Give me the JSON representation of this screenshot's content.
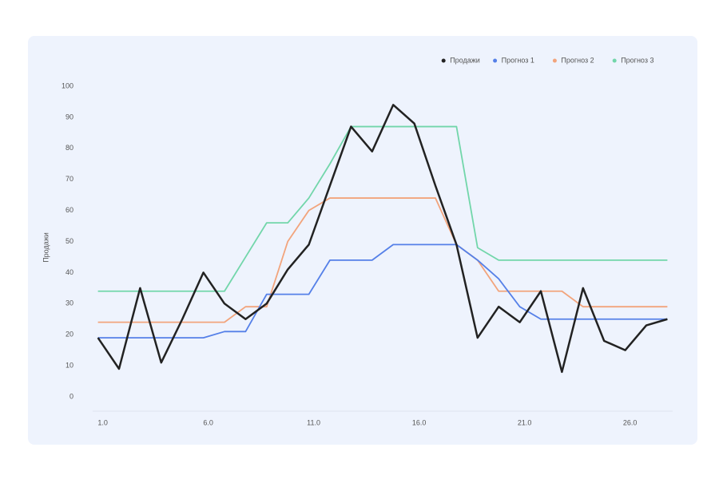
{
  "chart_data": {
    "type": "line",
    "y_label": "Продажи",
    "x": [
      1,
      2,
      3,
      4,
      5,
      6,
      7,
      8,
      9,
      10,
      11,
      12,
      13,
      14,
      15,
      16,
      17,
      18,
      19,
      20,
      21,
      22,
      23,
      24,
      25,
      26,
      27,
      28
    ],
    "series": [
      {
        "name": "Продажи",
        "color": "#222222",
        "values": [
          19,
          9,
          35,
          11,
          25,
          40,
          30,
          25,
          30,
          41,
          49,
          68,
          87,
          79,
          94,
          88,
          68,
          49,
          19,
          29,
          24,
          34,
          8,
          35,
          18,
          15,
          23,
          25
        ]
      },
      {
        "name": "Прогноз 1",
        "color": "#5580e8",
        "values": [
          19,
          19,
          19,
          19,
          19,
          19,
          21,
          21,
          33,
          33,
          33,
          44,
          44,
          44,
          49,
          49,
          49,
          49,
          44,
          38,
          29,
          25,
          25,
          25,
          25,
          25,
          25,
          25
        ]
      },
      {
        "name": "Прогноз 2",
        "color": "#f2a47c",
        "values": [
          24,
          24,
          24,
          24,
          24,
          24,
          24,
          29,
          29,
          50,
          60,
          64,
          64,
          64,
          64,
          64,
          64,
          49,
          44,
          34,
          34,
          34,
          34,
          29,
          29,
          29,
          29,
          29
        ]
      },
      {
        "name": "Прогноз 3",
        "color": "#72d6aa",
        "values": [
          34,
          34,
          34,
          34,
          34,
          34,
          34,
          45,
          56,
          56,
          64,
          75,
          87,
          87,
          87,
          87,
          87,
          87,
          48,
          44,
          44,
          44,
          44,
          44,
          44,
          44,
          44,
          44
        ]
      }
    ],
    "xlim": [
      0.75,
      28.25
    ],
    "xticks": [
      {
        "value": 1,
        "label": "1.0"
      },
      {
        "value": 6,
        "label": "6.0"
      },
      {
        "value": 11,
        "label": "11.0"
      },
      {
        "value": 16,
        "label": "16.0"
      },
      {
        "value": 21,
        "label": "21.0"
      },
      {
        "value": 26,
        "label": "26.0"
      }
    ],
    "ylim": [
      0,
      100
    ],
    "yticks": [
      0,
      10,
      20,
      30,
      40,
      50,
      60,
      70,
      80,
      90,
      100
    ],
    "legend": "top-right"
  }
}
